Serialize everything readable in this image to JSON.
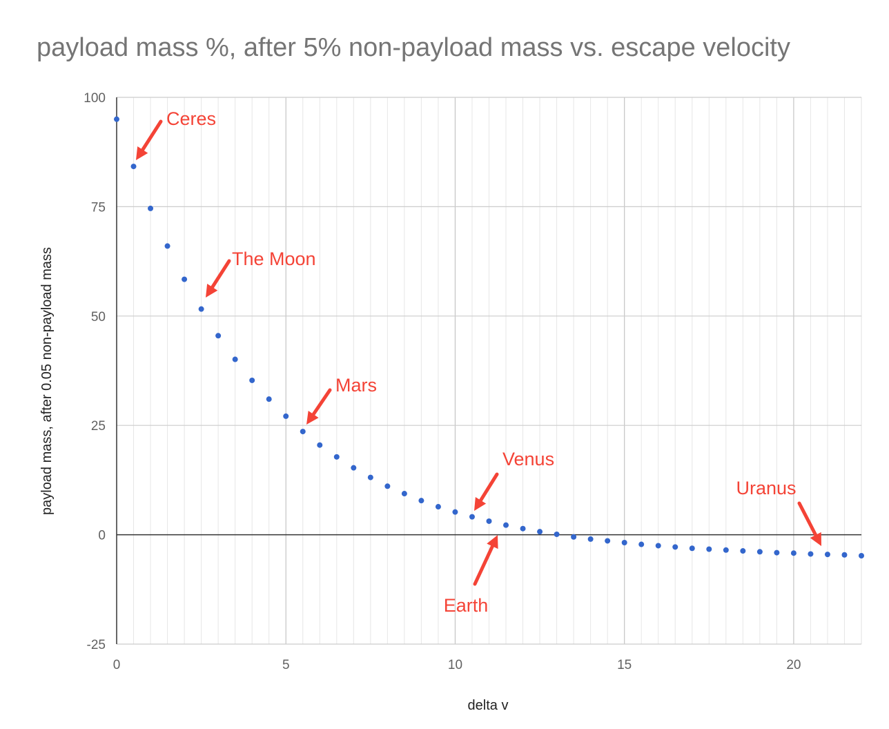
{
  "chart_data": {
    "type": "scatter",
    "title": "payload mass %, after 5% non-payload mass vs. escape velocity",
    "xlabel": "delta v",
    "ylabel": "payload mass, after 0.05 non-payload mass",
    "xlim": [
      0,
      22
    ],
    "ylim": [
      -25,
      100
    ],
    "x_ticks": [
      0,
      5,
      10,
      15,
      20
    ],
    "y_ticks": [
      -25,
      0,
      25,
      50,
      75,
      100
    ],
    "x_minor_step": 0.5,
    "grid": true,
    "legend": "none",
    "series": [
      {
        "color": "#3366cc",
        "x": [
          0,
          0.5,
          1,
          1.5,
          2,
          2.5,
          3,
          3.5,
          4,
          4.5,
          5,
          5.5,
          6,
          6.5,
          7,
          7.5,
          8,
          8.5,
          9,
          9.5,
          10,
          10.5,
          11,
          11.5,
          12,
          12.5,
          13,
          13.5,
          14,
          14.5,
          15,
          15.5,
          16,
          16.5,
          17,
          17.5,
          18,
          18.5,
          19,
          19.5,
          20,
          20.5,
          21,
          21.5,
          22
        ],
        "y": [
          95,
          84.2,
          74.6,
          66,
          58.4,
          51.6,
          45.5,
          40.1,
          35.3,
          31,
          27.1,
          23.6,
          20.5,
          17.8,
          15.3,
          13.1,
          11.1,
          9.4,
          7.8,
          6.4,
          5.2,
          4.1,
          3.1,
          2.2,
          1.4,
          0.7,
          0.1,
          -0.5,
          -1,
          -1.4,
          -1.8,
          -2.2,
          -2.5,
          -2.8,
          -3.1,
          -3.3,
          -3.5,
          -3.7,
          -3.9,
          -4.1,
          -4.2,
          -4.4,
          -4.5,
          -4.6,
          -4.8
        ]
      }
    ],
    "annotations": [
      {
        "text": "Ceres",
        "color": "#f44336",
        "x": 0.5,
        "y": 84.2
      },
      {
        "text": "The Moon",
        "color": "#f44336",
        "x": 2.5,
        "y": 51.6
      },
      {
        "text": "Mars",
        "color": "#f44336",
        "x": 5.5,
        "y": 23.6
      },
      {
        "text": "Venus",
        "color": "#f44336",
        "x": 10.5,
        "y": 4.1
      },
      {
        "text": "Earth",
        "color": "#f44336",
        "x": 11.2,
        "y": 0.5
      },
      {
        "text": "Uranus",
        "color": "#f44336",
        "x": 21,
        "y": -4.5
      }
    ]
  }
}
